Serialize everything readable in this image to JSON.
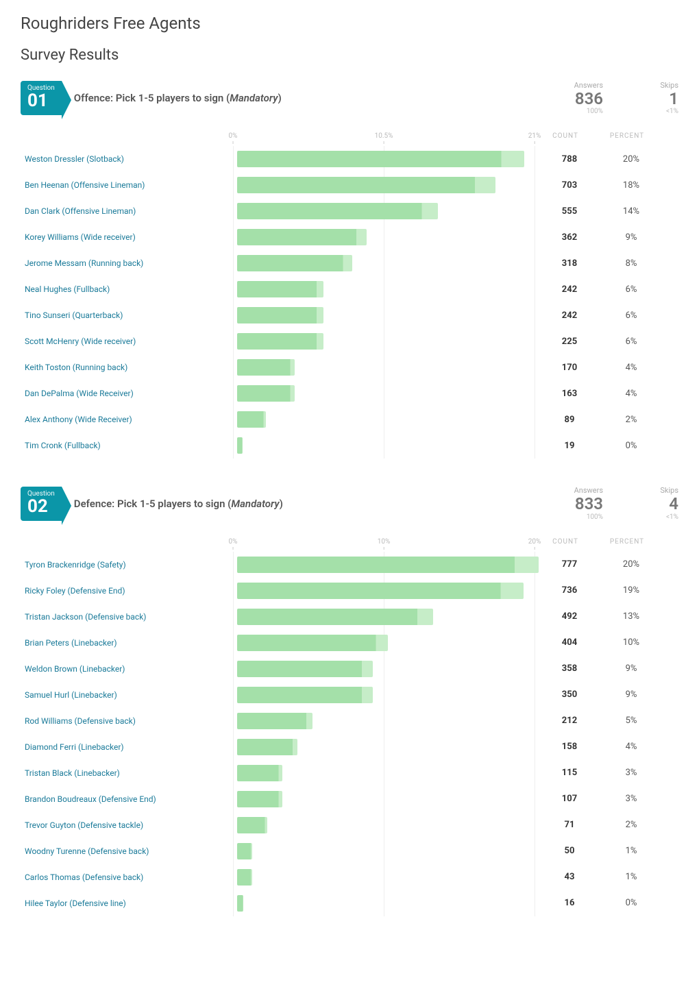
{
  "page_title": "Roughriders Free Agents",
  "section_title": "Survey Results",
  "question_badge_label": "Question",
  "axis_headers": {
    "count": "COUNT",
    "percent": "PERCENT"
  },
  "stat_labels": {
    "answers": "Answers",
    "skips": "Skips"
  },
  "bar_colors": {
    "fill": "#a4e0a9",
    "highlight": "#c6edc8"
  },
  "label_color": "#1a7a99",
  "grid_color": "#eeeeee",
  "questions": [
    {
      "number": "01",
      "title_prefix": "Offence: Pick 1-5 players to sign (",
      "title_mandatory": "Mandatory",
      "title_suffix": ")",
      "answers": "836",
      "answers_pct": "100%",
      "skips": "1",
      "skips_pct": "<1%",
      "axis_ticks": [
        {
          "label": "0%",
          "pos_pct": 0
        },
        {
          "label": "10.5%",
          "pos_pct": 50
        },
        {
          "label": "21%",
          "pos_pct": 100
        }
      ],
      "max_percent": 21,
      "rows": [
        {
          "label": "Weston Dressler (Slotback)",
          "count": "788",
          "percent": "20%",
          "value": 20
        },
        {
          "label": "Ben Heenan (Offensive Lineman)",
          "count": "703",
          "percent": "18%",
          "value": 18
        },
        {
          "label": "Dan Clark (Offensive Lineman)",
          "count": "555",
          "percent": "14%",
          "value": 14
        },
        {
          "label": "Korey Williams (Wide receiver)",
          "count": "362",
          "percent": "9%",
          "value": 9
        },
        {
          "label": "Jerome Messam (Running back)",
          "count": "318",
          "percent": "8%",
          "value": 8
        },
        {
          "label": "Neal Hughes (Fullback)",
          "count": "242",
          "percent": "6%",
          "value": 6
        },
        {
          "label": "Tino Sunseri (Quarterback)",
          "count": "242",
          "percent": "6%",
          "value": 6
        },
        {
          "label": "Scott McHenry (Wide receiver)",
          "count": "225",
          "percent": "6%",
          "value": 6
        },
        {
          "label": "Keith Toston (Running back)",
          "count": "170",
          "percent": "4%",
          "value": 4
        },
        {
          "label": "Dan DePalma (Wide Receiver)",
          "count": "163",
          "percent": "4%",
          "value": 4
        },
        {
          "label": "Alex Anthony (Wide Receiver)",
          "count": "89",
          "percent": "2%",
          "value": 2
        },
        {
          "label": "Tim Cronk (Fullback)",
          "count": "19",
          "percent": "0%",
          "value": 0.4
        }
      ]
    },
    {
      "number": "02",
      "title_prefix": "Defence: Pick 1-5 players to sign (",
      "title_mandatory": "Mandatory",
      "title_suffix": ")",
      "answers": "833",
      "answers_pct": "100%",
      "skips": "4",
      "skips_pct": "<1%",
      "axis_ticks": [
        {
          "label": "0%",
          "pos_pct": 0
        },
        {
          "label": "10%",
          "pos_pct": 50
        },
        {
          "label": "20%",
          "pos_pct": 100
        }
      ],
      "max_percent": 20,
      "rows": [
        {
          "label": "Tyron Brackenridge (Safety)",
          "count": "777",
          "percent": "20%",
          "value": 20
        },
        {
          "label": "Ricky Foley (Defensive End)",
          "count": "736",
          "percent": "19%",
          "value": 19
        },
        {
          "label": "Tristan Jackson (Defensive back)",
          "count": "492",
          "percent": "13%",
          "value": 13
        },
        {
          "label": "Brian Peters (Linebacker)",
          "count": "404",
          "percent": "10%",
          "value": 10
        },
        {
          "label": "Weldon Brown (Linebacker)",
          "count": "358",
          "percent": "9%",
          "value": 9
        },
        {
          "label": "Samuel Hurl (Linebacker)",
          "count": "350",
          "percent": "9%",
          "value": 9
        },
        {
          "label": "Rod Williams (Defensive back)",
          "count": "212",
          "percent": "5%",
          "value": 5
        },
        {
          "label": "Diamond Ferri (Linebacker)",
          "count": "158",
          "percent": "4%",
          "value": 4
        },
        {
          "label": "Tristan Black (Linebacker)",
          "count": "115",
          "percent": "3%",
          "value": 3
        },
        {
          "label": "Brandon Boudreaux (Defensive End)",
          "count": "107",
          "percent": "3%",
          "value": 3
        },
        {
          "label": "Trevor Guyton (Defensive tackle)",
          "count": "71",
          "percent": "2%",
          "value": 2
        },
        {
          "label": "Woodny Turenne (Defensive back)",
          "count": "50",
          "percent": "1%",
          "value": 1
        },
        {
          "label": "Carlos Thomas (Defensive back)",
          "count": "43",
          "percent": "1%",
          "value": 1
        },
        {
          "label": "Hilee Taylor (Defensive line)",
          "count": "16",
          "percent": "0%",
          "value": 0.4
        }
      ]
    }
  ]
}
